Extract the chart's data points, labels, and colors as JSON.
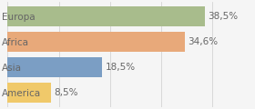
{
  "categories": [
    "America",
    "Asia",
    "Africa",
    "Europa"
  ],
  "values": [
    8.5,
    18.5,
    34.6,
    38.5
  ],
  "bar_colors": [
    "#f0c96a",
    "#7b9ec4",
    "#e8a97a",
    "#a8bc8c"
  ],
  "labels": [
    "8,5%",
    "18,5%",
    "34,6%",
    "38,5%"
  ],
  "background_color": "#f5f5f5",
  "xlim": [
    0,
    48
  ],
  "bar_height": 0.78,
  "label_fontsize": 7.5,
  "tick_fontsize": 7.5,
  "label_color": "#666666",
  "tick_color": "#666666"
}
